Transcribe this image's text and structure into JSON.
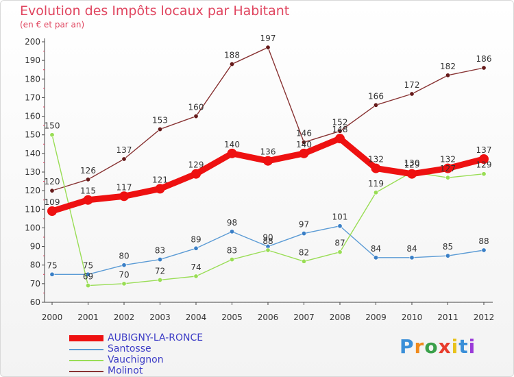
{
  "chart_data": {
    "type": "line",
    "title": "Evolution des Impôts locaux par Habitant",
    "subtitle": "(en € et par an)",
    "xlabel": "",
    "ylabel": "",
    "x": [
      "2000",
      "2001",
      "2002",
      "2003",
      "2004",
      "2005",
      "2006",
      "2007",
      "2008",
      "2009",
      "2010",
      "2011",
      "2012"
    ],
    "y_ticks": [
      "60",
      "70",
      "80",
      "90",
      "100",
      "110",
      "120",
      "130",
      "140",
      "150",
      "160",
      "170",
      "180",
      "190",
      "200"
    ],
    "ylim": [
      60,
      200
    ],
    "grid": false,
    "legend_position": "bottom-left",
    "series": [
      {
        "name": "AUBIGNY-LA-RONCE",
        "color": "#ee1111",
        "values": [
          109,
          115,
          117,
          121,
          129,
          140,
          136,
          140,
          148,
          132,
          129,
          132,
          137
        ],
        "labels": [
          "109",
          "115",
          "117",
          "121",
          "129",
          "140",
          "136",
          "140",
          "148",
          "132",
          "129",
          "132",
          "137"
        ]
      },
      {
        "name": "Santosse",
        "color": "#5b9bd5",
        "values": [
          75,
          75,
          80,
          83,
          89,
          98,
          90,
          97,
          101,
          84,
          84,
          85,
          88
        ],
        "labels": [
          "75",
          "75",
          "80",
          "83",
          "89",
          "98",
          "90",
          "97",
          "101",
          "84",
          "84",
          "85",
          "88"
        ]
      },
      {
        "name": "Vauchignon",
        "color": "#99dd55",
        "values": [
          150,
          69,
          70,
          72,
          74,
          83,
          88,
          82,
          87,
          119,
          130,
          127,
          129
        ],
        "labels": [
          "150",
          "69",
          "70",
          "72",
          "74",
          "83",
          "88",
          "82",
          "87",
          "119",
          "130",
          "127",
          "129"
        ]
      },
      {
        "name": "Molinot",
        "color": "#883333",
        "values": [
          120,
          126,
          137,
          153,
          160,
          188,
          197,
          146,
          152,
          166,
          172,
          182,
          186
        ],
        "labels": [
          "120",
          "126",
          "137",
          "153",
          "160",
          "188",
          "197",
          "146",
          "152",
          "166",
          "172",
          "182",
          "186"
        ]
      }
    ]
  },
  "logo": {
    "text": "Proxiti",
    "letters": [
      "P",
      "r",
      "o",
      "x",
      "i",
      "t",
      "i"
    ],
    "colors": [
      "#3a8fd8",
      "#f08a1c",
      "#3aa04a",
      "#e83c2c",
      "#e8c21c",
      "#3a8fd8",
      "#9a3ad8"
    ]
  }
}
